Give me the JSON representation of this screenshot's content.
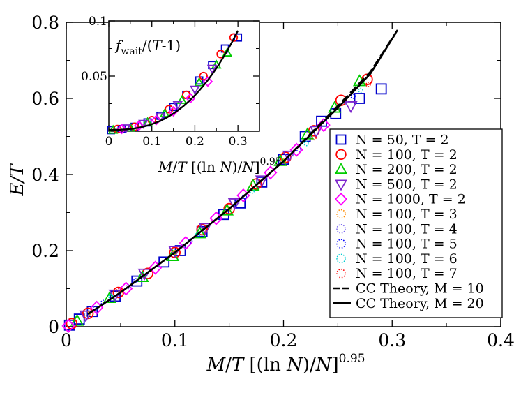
{
  "chart_data": [
    {
      "type": "scatter",
      "name": "main",
      "xlabel": "M/T [(ln N)/N]^0.95",
      "ylabel": "E/T",
      "xlim": [
        0,
        0.4
      ],
      "ylim": [
        0,
        0.8
      ],
      "xticks": [
        "0",
        "0.1",
        "0.2",
        "0.3",
        "0.4"
      ],
      "yticks": [
        "0",
        "0.2",
        "0.4",
        "0.6",
        "0.8"
      ],
      "legend": "right",
      "series": [
        {
          "label": "N = 50, T = 2",
          "marker": "square",
          "color": "#0000cc",
          "points": [
            [
              0.003,
              0.004
            ],
            [
              0.012,
              0.02
            ],
            [
              0.024,
              0.04
            ],
            [
              0.045,
              0.08
            ],
            [
              0.065,
              0.12
            ],
            [
              0.09,
              0.17
            ],
            [
              0.105,
              0.2
            ],
            [
              0.125,
              0.25
            ],
            [
              0.145,
              0.295
            ],
            [
              0.16,
              0.325
            ],
            [
              0.18,
              0.38
            ],
            [
              0.2,
              0.44
            ],
            [
              0.22,
              0.5
            ],
            [
              0.235,
              0.54
            ],
            [
              0.248,
              0.56
            ],
            [
              0.27,
              0.6
            ],
            [
              0.29,
              0.625
            ]
          ]
        },
        {
          "label": "N = 100, T = 2",
          "marker": "circle",
          "color": "#ff0000",
          "points": [
            [
              0.005,
              0.008
            ],
            [
              0.02,
              0.035
            ],
            [
              0.048,
              0.09
            ],
            [
              0.075,
              0.14
            ],
            [
              0.1,
              0.195
            ],
            [
              0.125,
              0.255
            ],
            [
              0.15,
              0.31
            ],
            [
              0.175,
              0.375
            ],
            [
              0.202,
              0.445
            ],
            [
              0.228,
              0.515
            ],
            [
              0.253,
              0.595
            ],
            [
              0.277,
              0.65
            ]
          ]
        },
        {
          "label": "N = 200, T = 2",
          "marker": "triangle-up",
          "color": "#00cc00",
          "points": [
            [
              0.01,
              0.015
            ],
            [
              0.04,
              0.075
            ],
            [
              0.07,
              0.13
            ],
            [
              0.098,
              0.185
            ],
            [
              0.123,
              0.245
            ],
            [
              0.148,
              0.305
            ],
            [
              0.172,
              0.37
            ],
            [
              0.197,
              0.435
            ],
            [
              0.222,
              0.505
            ],
            [
              0.247,
              0.575
            ],
            [
              0.27,
              0.645
            ]
          ]
        },
        {
          "label": "N = 500, T = 2",
          "marker": "triangle-down",
          "color": "#7d26cd",
          "points": [
            [
              0.018,
              0.03
            ],
            [
              0.045,
              0.085
            ],
            [
              0.072,
              0.14
            ],
            [
              0.1,
              0.2
            ],
            [
              0.128,
              0.26
            ],
            [
              0.155,
              0.325
            ],
            [
              0.18,
              0.385
            ],
            [
              0.205,
              0.45
            ],
            [
              0.23,
              0.515
            ],
            [
              0.262,
              0.58
            ]
          ]
        },
        {
          "label": "N = 1000, T = 2",
          "marker": "diamond",
          "color": "#ff00ff",
          "points": [
            [
              0.002,
              0.002
            ],
            [
              0.028,
              0.05
            ],
            [
              0.055,
              0.1
            ],
            [
              0.082,
              0.155
            ],
            [
              0.11,
              0.22
            ],
            [
              0.138,
              0.285
            ],
            [
              0.163,
              0.345
            ],
            [
              0.188,
              0.405
            ],
            [
              0.212,
              0.465
            ],
            [
              0.237,
              0.53
            ]
          ]
        }
      ],
      "dotted_series": [
        {
          "label": "N = 100, T = 3",
          "color": "#ff8c00"
        },
        {
          "label": "N = 100, T = 4",
          "color": "#7b68ee"
        },
        {
          "label": "N = 100, T = 5",
          "color": "#0000ff"
        },
        {
          "label": "N = 100, T = 6",
          "color": "#00ced1"
        },
        {
          "label": "N = 100, T = 7",
          "color": "#ff0000"
        }
      ],
      "theory": [
        {
          "label": "CC Theory, M = 10",
          "style": "dashed",
          "points": [
            [
              0.02,
              0.033
            ],
            [
              0.05,
              0.09
            ],
            [
              0.1,
              0.195
            ],
            [
              0.15,
              0.31
            ],
            [
              0.2,
              0.435
            ],
            [
              0.25,
              0.58
            ],
            [
              0.28,
              0.67
            ],
            [
              0.305,
              0.78
            ]
          ]
        },
        {
          "label": "CC Theory, M = 20",
          "style": "solid",
          "points": [
            [
              0.02,
              0.033
            ],
            [
              0.05,
              0.09
            ],
            [
              0.1,
              0.195
            ],
            [
              0.15,
              0.31
            ],
            [
              0.2,
              0.435
            ],
            [
              0.25,
              0.575
            ],
            [
              0.28,
              0.665
            ],
            [
              0.303,
              0.77
            ]
          ]
        }
      ]
    },
    {
      "type": "scatter",
      "name": "inset",
      "title": "f_wait/(T-1)",
      "xlabel": "M/T [(ln N)/N]^0.95",
      "xlim": [
        0,
        0.35
      ],
      "ylim": [
        0,
        0.1
      ],
      "xticks": [
        "0",
        "0.1",
        "0.2",
        "0.3"
      ],
      "yticks": [
        "0.05",
        "0.1"
      ],
      "series": [
        {
          "label": "N = 50, T = 2",
          "marker": "square",
          "color": "#0000cc",
          "points": [
            [
              0.005,
              0.001
            ],
            [
              0.03,
              0.002
            ],
            [
              0.06,
              0.004
            ],
            [
              0.09,
              0.008
            ],
            [
              0.12,
              0.014
            ],
            [
              0.15,
              0.022
            ],
            [
              0.18,
              0.033
            ],
            [
              0.21,
              0.046
            ],
            [
              0.24,
              0.06
            ],
            [
              0.27,
              0.075
            ],
            [
              0.3,
              0.085
            ]
          ]
        },
        {
          "label": "N = 100, T = 2",
          "marker": "circle",
          "color": "#ff0000",
          "points": [
            [
              0.02,
              0.002
            ],
            [
              0.06,
              0.004
            ],
            [
              0.1,
              0.01
            ],
            [
              0.14,
              0.02
            ],
            [
              0.18,
              0.033
            ],
            [
              0.22,
              0.05
            ],
            [
              0.26,
              0.07
            ],
            [
              0.29,
              0.085
            ]
          ]
        },
        {
          "label": "N = 200, T = 2",
          "marker": "triangle-up",
          "color": "#00cc00",
          "points": [
            [
              0.01,
              0.001
            ],
            [
              0.05,
              0.003
            ],
            [
              0.09,
              0.008
            ],
            [
              0.13,
              0.016
            ],
            [
              0.17,
              0.028
            ],
            [
              0.21,
              0.044
            ],
            [
              0.25,
              0.06
            ],
            [
              0.275,
              0.071
            ]
          ]
        },
        {
          "label": "N = 500, T = 2",
          "marker": "triangle-down",
          "color": "#7d26cd",
          "points": [
            [
              0.04,
              0.003
            ],
            [
              0.08,
              0.007
            ],
            [
              0.12,
              0.013
            ],
            [
              0.16,
              0.024
            ],
            [
              0.2,
              0.038
            ],
            [
              0.24,
              0.057
            ]
          ]
        },
        {
          "label": "N = 1000, T = 2",
          "marker": "diamond",
          "color": "#ff00ff",
          "points": [
            [
              0.03,
              0.002
            ],
            [
              0.07,
              0.005
            ],
            [
              0.11,
              0.01
            ],
            [
              0.15,
              0.018
            ],
            [
              0.19,
              0.03
            ],
            [
              0.23,
              0.045
            ]
          ]
        }
      ]
    }
  ]
}
